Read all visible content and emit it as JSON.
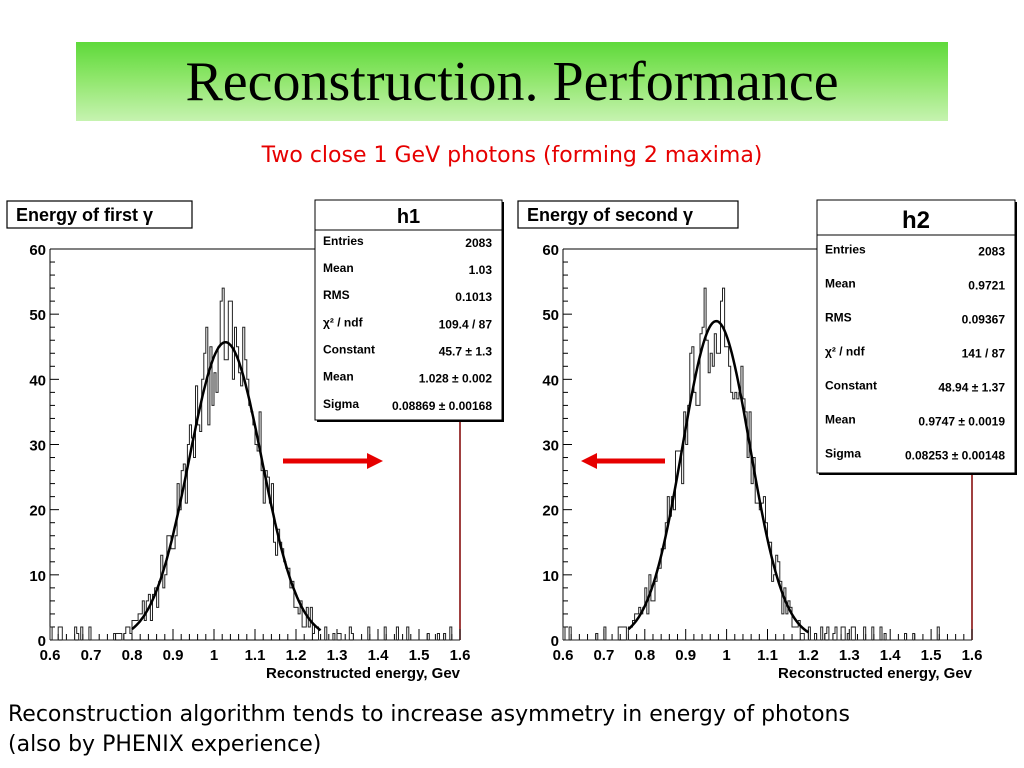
{
  "slide": {
    "title": "Reconstruction. Performance",
    "subtitle": "Two close 1 GeV photons (forming 2 maxima)",
    "caption_line1": "Reconstruction algorithm tends to increase asymmetry in energy of photons",
    "caption_line2": "(also by PHENIX experience)"
  },
  "colors": {
    "arrow": "#e60000",
    "frame_right": "#800000",
    "subtitle": "#e60000"
  },
  "chart_data": [
    {
      "type": "bar",
      "title": "Energy of first γ",
      "xlabel": "Reconstructed energy, Gev",
      "ylabel": "",
      "xlim": [
        0.6,
        1.6
      ],
      "ylim": [
        0,
        60
      ],
      "xticks": [
        "0.6",
        "0.7",
        "0.8",
        "0.9",
        "1",
        "1.1",
        "1.2",
        "1.3",
        "1.4",
        "1.5",
        "1.6"
      ],
      "yticks": [
        "0",
        "10",
        "20",
        "30",
        "40",
        "50",
        "60"
      ],
      "fit": {
        "type": "gaussian",
        "constant": 45.7,
        "mean": 1.028,
        "sigma": 0.08869,
        "range": [
          0.8,
          1.26
        ]
      },
      "stats": {
        "name": "h1",
        "rows": [
          {
            "label": "Entries",
            "value": "2083"
          },
          {
            "label": "Mean",
            "value": "1.03"
          },
          {
            "label": "RMS",
            "value": "0.1013"
          },
          {
            "label": "χ² / ndf",
            "value": "109.4 / 87"
          },
          {
            "label": "Constant",
            "value": "45.7 ± 1.3"
          },
          {
            "label": "Mean",
            "value": "1.028 ± 0.002"
          },
          {
            "label": "Sigma",
            "value": "0.08869 ± 0.00168"
          }
        ]
      },
      "arrow_direction": "right"
    },
    {
      "type": "bar",
      "title": "Energy of second γ",
      "xlabel": "Reconstructed energy, Gev",
      "ylabel": "",
      "xlim": [
        0.6,
        1.6
      ],
      "ylim": [
        0,
        60
      ],
      "xticks": [
        "0.6",
        "0.7",
        "0.8",
        "0.9",
        "1",
        "1.1",
        "1.2",
        "1.3",
        "1.4",
        "1.5",
        "1.6"
      ],
      "yticks": [
        "0",
        "10",
        "20",
        "30",
        "40",
        "50",
        "60"
      ],
      "fit": {
        "type": "gaussian",
        "constant": 48.94,
        "mean": 0.9747,
        "sigma": 0.08253,
        "range": [
          0.76,
          1.2
        ]
      },
      "stats": {
        "name": "h2",
        "rows": [
          {
            "label": "Entries",
            "value": "2083"
          },
          {
            "label": "Mean",
            "value": "0.9721"
          },
          {
            "label": "RMS",
            "value": "0.09367"
          },
          {
            "label": "χ² / ndf",
            "value": "141 / 87"
          },
          {
            "label": "Constant",
            "value": "48.94 ± 1.37"
          },
          {
            "label": "Mean",
            "value": "0.9747 ± 0.0019"
          },
          {
            "label": "Sigma",
            "value": "0.08253 ± 0.00148"
          }
        ]
      },
      "arrow_direction": "left"
    }
  ]
}
